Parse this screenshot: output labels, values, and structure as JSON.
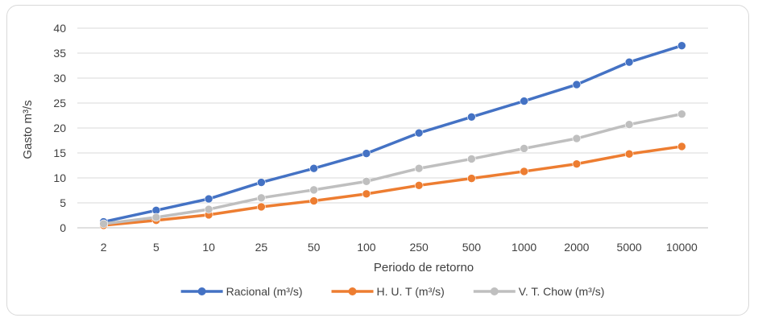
{
  "chart_data": {
    "type": "line",
    "title": "",
    "xlabel": "Periodo de retorno",
    "ylabel": "Gasto m³/s",
    "categories": [
      "2",
      "5",
      "10",
      "25",
      "50",
      "100",
      "250",
      "500",
      "1000",
      "2000",
      "5000",
      "10000"
    ],
    "ylim": [
      0,
      40
    ],
    "yticks": [
      0,
      5,
      10,
      15,
      20,
      25,
      30,
      35,
      40
    ],
    "grid": true,
    "legend_position": "bottom",
    "series": [
      {
        "name": "Racional (m³/s)",
        "color": "#4472c4",
        "values": [
          1.2,
          3.5,
          5.8,
          9.1,
          11.9,
          14.9,
          19.0,
          22.2,
          25.4,
          28.7,
          33.2,
          36.5
        ]
      },
      {
        "name": "H. U. T (m³/s)",
        "color": "#ed7d31",
        "values": [
          0.5,
          1.5,
          2.6,
          4.2,
          5.4,
          6.8,
          8.5,
          9.9,
          11.3,
          12.8,
          14.8,
          16.3
        ]
      },
      {
        "name": "V. T. Chow (m³/s)",
        "color": "#bfbfbf",
        "values": [
          0.8,
          2.1,
          3.7,
          6.0,
          7.6,
          9.3,
          11.9,
          13.8,
          15.9,
          17.9,
          20.7,
          22.8
        ]
      }
    ]
  }
}
